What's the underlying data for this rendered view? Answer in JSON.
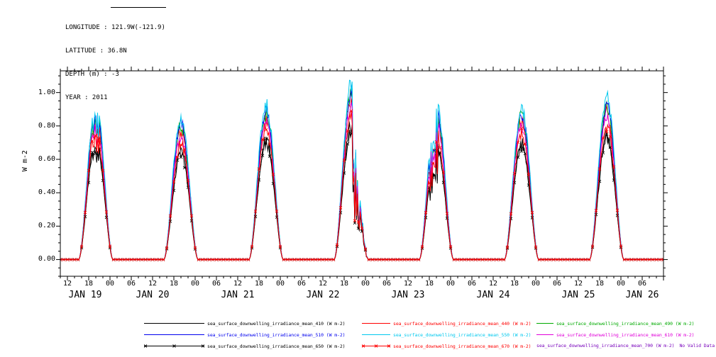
{
  "header": {
    "lines": [
      "LONGITUDE : 121.9W(-121.9)",
      "LATITUDE : 36.8N",
      "DEPTH (m) : -3",
      "YEAR : 2011"
    ]
  },
  "chart_data": {
    "type": "line",
    "title": "",
    "xlabel": "",
    "ylabel": "W m-2",
    "ylim": [
      -0.1,
      1.13
    ],
    "xlim_time": "JAN 19 2011 10:00 UTC to JAN 26 2011 12:00 UTC",
    "grid": false,
    "legend_position": "bottom",
    "y_ticks": [
      0.0,
      0.2,
      0.4,
      0.6,
      0.8,
      1.0
    ],
    "y_tick_labels": [
      "0.00",
      "0.20",
      "0.40",
      "0.60",
      "0.80",
      "1.00"
    ],
    "x_axis": {
      "hours_total": 170,
      "hour_tick_step": 6,
      "first_tick_offset_hours": 2,
      "hour_label_cycle": [
        "12",
        "18",
        "00",
        "06"
      ],
      "day_labels": [
        {
          "label": "JAN 19",
          "center_hour": 7
        },
        {
          "label": "JAN 20",
          "center_hour": 26
        },
        {
          "label": "JAN 21",
          "center_hour": 50
        },
        {
          "label": "JAN 22",
          "center_hour": 74
        },
        {
          "label": "JAN 23",
          "center_hour": 98
        },
        {
          "label": "JAN 24",
          "center_hour": 122
        },
        {
          "label": "JAN 25",
          "center_hour": 146
        },
        {
          "label": "JAN 26",
          "center_hour": 164
        }
      ]
    },
    "sun": {
      "first_peak_hour": 10,
      "peak_utc": "20:00",
      "daylight_hours": 9.6,
      "shape_exponent": 1.7
    },
    "jitter": 0.04,
    "events": [
      {
        "day_index": 0,
        "from_rel": -0.8,
        "to_rel": 0.8,
        "min_factor": 0.82,
        "max_factor": 1.0
      },
      {
        "day_index": 3,
        "from_rel": 0.3,
        "to_rel": 4.8,
        "min_factor": 0.3,
        "max_factor": 0.8
      },
      {
        "day_index": 4,
        "from_rel": -2.0,
        "to_rel": 0.3,
        "min_factor": 0.62,
        "max_factor": 0.95
      }
    ],
    "series": [
      {
        "name": "sea_surface_downwelling_irradiance_mean_410 (W m-2)",
        "color": "#000000",
        "marker": "none",
        "daily_peaks": [
          0.72,
          0.66,
          0.72,
          0.8,
          0.7,
          0.7,
          0.74
        ]
      },
      {
        "name": "sea_surface_downwelling_irradiance_mean_440 (W m-2)",
        "color": "#ff0000",
        "marker": "none",
        "daily_peaks": [
          0.85,
          0.77,
          0.84,
          0.96,
          0.86,
          0.83,
          0.88
        ]
      },
      {
        "name": "sea_surface_downwelling_irradiance_mean_490 (W m-2)",
        "color": "#00aa00",
        "marker": "none",
        "daily_peaks": [
          0.88,
          0.8,
          0.87,
          0.99,
          0.89,
          0.86,
          0.91
        ]
      },
      {
        "name": "sea_surface_downwelling_irradiance_mean_510 (W m-2)",
        "color": "#0000ee",
        "marker": "none",
        "daily_peaks": [
          0.89,
          0.81,
          0.88,
          1.0,
          0.9,
          0.87,
          0.92
        ]
      },
      {
        "name": "sea_surface_downwelling_irradiance_mean_550 (W m-2)",
        "color": "#00c8ee",
        "marker": "none",
        "daily_peaks": [
          0.93,
          0.85,
          0.92,
          1.05,
          0.95,
          0.9,
          0.97
        ]
      },
      {
        "name": "sea_surface_downwelling_irradiance_mean_610 (W m-2)",
        "color": "#e000d8",
        "marker": "none",
        "daily_peaks": [
          0.82,
          0.74,
          0.81,
          0.92,
          0.83,
          0.8,
          0.85
        ]
      },
      {
        "name": "sea_surface_downwelling_irradiance_mean_650 (W m-2)",
        "color": "#000000",
        "marker": "x",
        "daily_peaks": [
          0.7,
          0.63,
          0.7,
          0.77,
          0.68,
          0.68,
          0.72
        ]
      },
      {
        "name": "sea_surface_downwelling_irradiance_mean_670 (W m-2)",
        "color": "#ff0000",
        "marker": "x",
        "daily_peaks": [
          0.78,
          0.7,
          0.78,
          0.86,
          0.76,
          0.75,
          0.8
        ]
      },
      {
        "name": "sea_surface_downwelling_irradiance_mean_700 (W m-2)",
        "color": "#7700bb",
        "marker": "none",
        "daily_peaks": null,
        "note": "No Valid Data"
      }
    ]
  }
}
